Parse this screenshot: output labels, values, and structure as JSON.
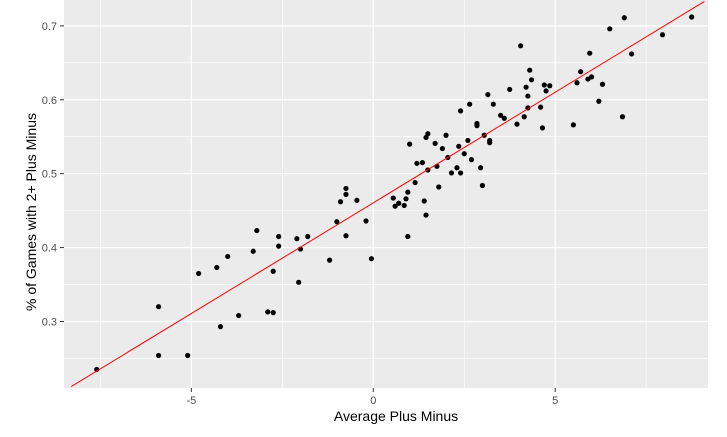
{
  "chart_data": {
    "type": "scatter",
    "xlabel": "Average Plus Minus",
    "ylabel": "% of Games with 2+ Plus Minus",
    "xlim": [
      -8.5,
      9.2
    ],
    "ylim": [
      0.21,
      0.735
    ],
    "x_ticks": [
      -5,
      0,
      5
    ],
    "x_tick_labels": [
      "-5",
      "0",
      "5"
    ],
    "y_ticks": [
      0.3,
      0.4,
      0.5,
      0.6,
      0.7
    ],
    "y_tick_labels": [
      "0.3",
      "0.4",
      "0.5",
      "0.6",
      "0.7"
    ],
    "grid": true,
    "panel_background": "#ebebeb",
    "grid_color": "#ffffff",
    "point_color": "#000000",
    "trend_line": {
      "color": "#ff0000",
      "x": [
        -8.3,
        9.1
      ],
      "y": [
        0.212,
        0.733
      ]
    },
    "points": [
      {
        "x": -7.6,
        "y": 0.235
      },
      {
        "x": -5.9,
        "y": 0.32
      },
      {
        "x": -5.9,
        "y": 0.254
      },
      {
        "x": -5.1,
        "y": 0.254
      },
      {
        "x": -4.8,
        "y": 0.365
      },
      {
        "x": -4.3,
        "y": 0.373
      },
      {
        "x": -4.2,
        "y": 0.293
      },
      {
        "x": -4.0,
        "y": 0.388
      },
      {
        "x": -3.7,
        "y": 0.308
      },
      {
        "x": -3.3,
        "y": 0.395
      },
      {
        "x": -3.2,
        "y": 0.423
      },
      {
        "x": -2.9,
        "y": 0.313
      },
      {
        "x": -2.75,
        "y": 0.368
      },
      {
        "x": -2.75,
        "y": 0.312
      },
      {
        "x": -2.6,
        "y": 0.402
      },
      {
        "x": -2.6,
        "y": 0.415
      },
      {
        "x": -2.1,
        "y": 0.412
      },
      {
        "x": -2.05,
        "y": 0.353
      },
      {
        "x": -2.0,
        "y": 0.398
      },
      {
        "x": -1.8,
        "y": 0.415
      },
      {
        "x": -1.2,
        "y": 0.383
      },
      {
        "x": -1.0,
        "y": 0.435
      },
      {
        "x": -0.9,
        "y": 0.462
      },
      {
        "x": -0.75,
        "y": 0.472
      },
      {
        "x": -0.75,
        "y": 0.48
      },
      {
        "x": -0.75,
        "y": 0.416
      },
      {
        "x": -0.45,
        "y": 0.464
      },
      {
        "x": -0.2,
        "y": 0.436
      },
      {
        "x": -0.05,
        "y": 0.385
      },
      {
        "x": 0.55,
        "y": 0.467
      },
      {
        "x": 0.6,
        "y": 0.456
      },
      {
        "x": 0.7,
        "y": 0.46
      },
      {
        "x": 0.85,
        "y": 0.457
      },
      {
        "x": 0.9,
        "y": 0.466
      },
      {
        "x": 0.95,
        "y": 0.475
      },
      {
        "x": 0.95,
        "y": 0.415
      },
      {
        "x": 1.0,
        "y": 0.54
      },
      {
        "x": 1.15,
        "y": 0.488
      },
      {
        "x": 1.2,
        "y": 0.514
      },
      {
        "x": 1.35,
        "y": 0.515
      },
      {
        "x": 1.4,
        "y": 0.463
      },
      {
        "x": 1.45,
        "y": 0.444
      },
      {
        "x": 1.45,
        "y": 0.549
      },
      {
        "x": 1.5,
        "y": 0.554
      },
      {
        "x": 1.5,
        "y": 0.505
      },
      {
        "x": 1.7,
        "y": 0.541
      },
      {
        "x": 1.75,
        "y": 0.51
      },
      {
        "x": 1.8,
        "y": 0.482
      },
      {
        "x": 1.9,
        "y": 0.534
      },
      {
        "x": 2.0,
        "y": 0.552
      },
      {
        "x": 2.05,
        "y": 0.522
      },
      {
        "x": 2.15,
        "y": 0.501
      },
      {
        "x": 2.3,
        "y": 0.508
      },
      {
        "x": 2.35,
        "y": 0.537
      },
      {
        "x": 2.4,
        "y": 0.501
      },
      {
        "x": 2.4,
        "y": 0.585
      },
      {
        "x": 2.5,
        "y": 0.527
      },
      {
        "x": 2.6,
        "y": 0.545
      },
      {
        "x": 2.65,
        "y": 0.594
      },
      {
        "x": 2.7,
        "y": 0.519
      },
      {
        "x": 2.85,
        "y": 0.568
      },
      {
        "x": 2.85,
        "y": 0.565
      },
      {
        "x": 2.95,
        "y": 0.508
      },
      {
        "x": 3.0,
        "y": 0.484
      },
      {
        "x": 3.05,
        "y": 0.552
      },
      {
        "x": 3.15,
        "y": 0.607
      },
      {
        "x": 3.2,
        "y": 0.545
      },
      {
        "x": 3.2,
        "y": 0.542
      },
      {
        "x": 3.3,
        "y": 0.594
      },
      {
        "x": 3.5,
        "y": 0.579
      },
      {
        "x": 3.6,
        "y": 0.575
      },
      {
        "x": 3.75,
        "y": 0.614
      },
      {
        "x": 3.95,
        "y": 0.567
      },
      {
        "x": 4.05,
        "y": 0.673
      },
      {
        "x": 4.15,
        "y": 0.577
      },
      {
        "x": 4.2,
        "y": 0.617
      },
      {
        "x": 4.25,
        "y": 0.605
      },
      {
        "x": 4.25,
        "y": 0.589
      },
      {
        "x": 4.3,
        "y": 0.64
      },
      {
        "x": 4.35,
        "y": 0.627
      },
      {
        "x": 4.6,
        "y": 0.59
      },
      {
        "x": 4.65,
        "y": 0.562
      },
      {
        "x": 4.7,
        "y": 0.62
      },
      {
        "x": 4.75,
        "y": 0.612
      },
      {
        "x": 4.85,
        "y": 0.619
      },
      {
        "x": 5.5,
        "y": 0.566
      },
      {
        "x": 5.6,
        "y": 0.623
      },
      {
        "x": 5.7,
        "y": 0.638
      },
      {
        "x": 5.9,
        "y": 0.628
      },
      {
        "x": 5.95,
        "y": 0.663
      },
      {
        "x": 6.0,
        "y": 0.631
      },
      {
        "x": 6.2,
        "y": 0.598
      },
      {
        "x": 6.3,
        "y": 0.621
      },
      {
        "x": 6.5,
        "y": 0.696
      },
      {
        "x": 6.85,
        "y": 0.577
      },
      {
        "x": 6.9,
        "y": 0.711
      },
      {
        "x": 7.1,
        "y": 0.662
      },
      {
        "x": 7.95,
        "y": 0.688
      },
      {
        "x": 8.75,
        "y": 0.712
      }
    ]
  }
}
